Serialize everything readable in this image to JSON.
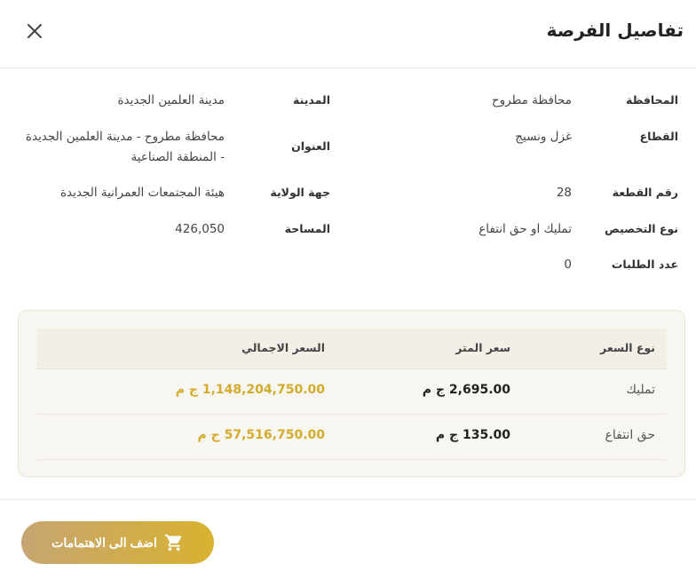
{
  "dialog": {
    "title": "تفاصيل الفرصة",
    "close_icon": "close-icon"
  },
  "details": {
    "governorate": {
      "label": "المحافظة",
      "value": "محافظة مطروح"
    },
    "city": {
      "label": "المدينة",
      "value": "مدينة العلمين الجديدة"
    },
    "sector": {
      "label": "القطاع",
      "value": "غزل ونسيج"
    },
    "address": {
      "label": "العنوان",
      "value": "محافظة مطروح - مدينة العلمين الجديدة - المنطقة الصناعية"
    },
    "plot_number": {
      "label": "رقم القطعة",
      "value": "28"
    },
    "authority": {
      "label": "جهة الولاية",
      "value": "هيئة المجتمعات العمرانية الجديدة"
    },
    "allocation_type": {
      "label": "نوع التخصيص",
      "value": "تمليك او حق انتفاع"
    },
    "area": {
      "label": "المساحة",
      "value": "426,050"
    },
    "requests_count": {
      "label": "عدد الطلبات",
      "value": "0"
    }
  },
  "price_table": {
    "headers": [
      "نوع السعر",
      "سعر المتر",
      "السعر الاجمالي"
    ],
    "rows": [
      {
        "type": "تمليك",
        "per_meter": "2,695.00 ج م",
        "total": "1,148,204,750.00 ج م"
      },
      {
        "type": "حق انتفاع",
        "per_meter": "135.00 ج م",
        "total": "57,516,750.00 ج م"
      }
    ],
    "total_color": "#d4ab2c"
  },
  "footer": {
    "add_button_label": "اضف الى الاهتمامات",
    "add_button_icon": "cart-icon"
  }
}
